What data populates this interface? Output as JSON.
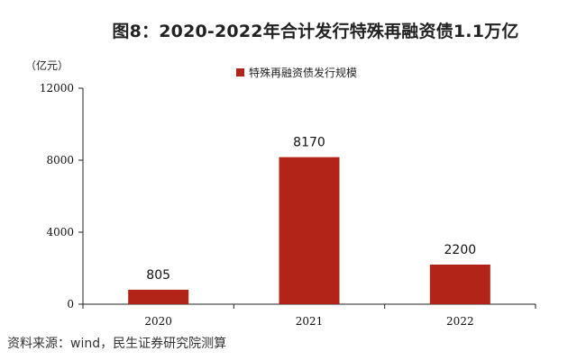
{
  "chart_data": {
    "type": "bar",
    "title": "图8：2020-2022年合计发行特殊再融资债1.1万亿",
    "unit_label": "（亿元）",
    "categories": [
      "2020",
      "2021",
      "2022"
    ],
    "series": [
      {
        "name": "特殊再融资债发行规模",
        "values": [
          805,
          8170,
          2200
        ],
        "color": "#b22418"
      }
    ],
    "data_labels": [
      "805",
      "8170",
      "2200"
    ],
    "ylim": [
      0,
      12000
    ],
    "yticks": [
      0,
      4000,
      8000,
      12000
    ],
    "ytick_labels": [
      "0",
      "4000",
      "8000",
      "12000"
    ],
    "legend_position": "top-center",
    "grid": false
  },
  "source_text": "资料来源：wind，民生证券研究院测算"
}
